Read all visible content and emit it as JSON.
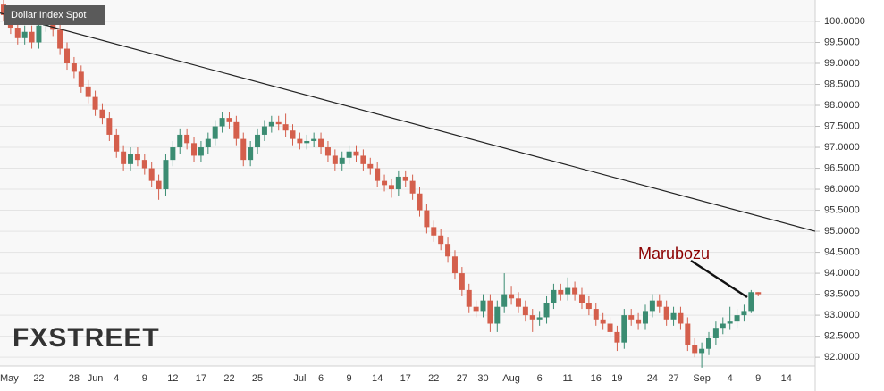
{
  "chart_data": {
    "type": "candlestick",
    "title": "Dollar Index Spot",
    "watermark": "FXSTREET",
    "annotation": "Marubozu",
    "up_color": "#3b8c72",
    "down_color": "#d45f4c",
    "categories": [
      null,
      "May",
      null,
      null,
      null,
      "22",
      null,
      null,
      null,
      null,
      "28",
      null,
      null,
      "Jun",
      null,
      null,
      "4",
      null,
      null,
      null,
      "9",
      null,
      null,
      null,
      "12",
      null,
      null,
      null,
      "17",
      null,
      null,
      null,
      "22",
      null,
      null,
      null,
      "25",
      null,
      null,
      null,
      null,
      null,
      "Jul",
      null,
      null,
      "6",
      null,
      null,
      null,
      "9",
      null,
      null,
      null,
      "14",
      null,
      null,
      null,
      "17",
      null,
      null,
      null,
      "22",
      null,
      null,
      null,
      "27",
      null,
      null,
      "30",
      null,
      null,
      null,
      "Aug",
      null,
      null,
      null,
      "6",
      null,
      null,
      null,
      "11",
      null,
      null,
      null,
      "16",
      null,
      null,
      "19",
      null,
      null,
      null,
      null,
      "24",
      null,
      null,
      "27",
      null,
      null,
      null,
      "Sep",
      null,
      null,
      null,
      "4",
      null,
      null,
      null,
      "9",
      null,
      null,
      null,
      "14"
    ],
    "candles": [
      [
        100.4,
        100.55,
        100.0,
        100.15
      ],
      [
        100.15,
        100.3,
        99.7,
        99.85
      ],
      [
        99.85,
        100.0,
        99.45,
        99.6
      ],
      [
        99.6,
        99.9,
        99.45,
        99.75
      ],
      [
        99.75,
        99.9,
        99.35,
        99.5
      ],
      [
        99.5,
        100.05,
        99.35,
        99.9
      ],
      [
        99.9,
        100.15,
        99.75,
        100.0
      ],
      [
        100.0,
        100.15,
        99.65,
        99.8
      ],
      [
        99.8,
        99.95,
        99.2,
        99.35
      ],
      [
        99.35,
        99.5,
        98.85,
        99.0
      ],
      [
        99.0,
        99.15,
        98.65,
        98.8
      ],
      [
        98.8,
        98.95,
        98.3,
        98.45
      ],
      [
        98.45,
        98.6,
        98.05,
        98.2
      ],
      [
        98.2,
        98.35,
        97.75,
        97.9
      ],
      [
        97.9,
        98.05,
        97.55,
        97.7
      ],
      [
        97.7,
        97.85,
        97.15,
        97.3
      ],
      [
        97.3,
        97.45,
        96.75,
        96.9
      ],
      [
        96.9,
        97.05,
        96.45,
        96.6
      ],
      [
        96.6,
        97.0,
        96.45,
        96.85
      ],
      [
        96.85,
        97.0,
        96.55,
        96.7
      ],
      [
        96.7,
        96.85,
        96.35,
        96.5
      ],
      [
        96.5,
        96.65,
        96.05,
        96.2
      ],
      [
        96.2,
        96.35,
        95.75,
        96.0
      ],
      [
        96.0,
        96.85,
        95.85,
        96.7
      ],
      [
        96.7,
        97.15,
        96.55,
        97.0
      ],
      [
        97.0,
        97.45,
        96.85,
        97.3
      ],
      [
        97.3,
        97.45,
        96.95,
        97.1
      ],
      [
        97.1,
        97.25,
        96.65,
        96.8
      ],
      [
        96.8,
        97.15,
        96.65,
        97.0
      ],
      [
        97.0,
        97.35,
        96.85,
        97.2
      ],
      [
        97.2,
        97.65,
        97.05,
        97.5
      ],
      [
        97.5,
        97.85,
        97.35,
        97.7
      ],
      [
        97.7,
        97.85,
        97.45,
        97.6
      ],
      [
        97.6,
        97.75,
        97.05,
        97.2
      ],
      [
        97.2,
        97.35,
        96.55,
        96.7
      ],
      [
        96.7,
        97.15,
        96.55,
        97.0
      ],
      [
        97.0,
        97.45,
        96.85,
        97.3
      ],
      [
        97.3,
        97.65,
        97.15,
        97.5
      ],
      [
        97.5,
        97.75,
        97.35,
        97.6
      ],
      [
        97.6,
        97.75,
        97.4,
        97.55
      ],
      [
        97.55,
        97.8,
        97.25,
        97.4
      ],
      [
        97.4,
        97.55,
        97.05,
        97.2
      ],
      [
        97.2,
        97.35,
        96.95,
        97.1
      ],
      [
        97.1,
        97.3,
        96.95,
        97.15
      ],
      [
        97.15,
        97.35,
        97.0,
        97.2
      ],
      [
        97.2,
        97.35,
        96.85,
        97.0
      ],
      [
        97.0,
        97.15,
        96.65,
        96.8
      ],
      [
        96.8,
        96.95,
        96.45,
        96.6
      ],
      [
        96.6,
        96.9,
        96.45,
        96.75
      ],
      [
        96.75,
        97.05,
        96.6,
        96.9
      ],
      [
        96.9,
        97.05,
        96.65,
        96.8
      ],
      [
        96.8,
        96.95,
        96.45,
        96.6
      ],
      [
        96.6,
        96.75,
        96.35,
        96.5
      ],
      [
        96.5,
        96.65,
        96.05,
        96.2
      ],
      [
        96.2,
        96.35,
        95.95,
        96.1
      ],
      [
        96.1,
        96.25,
        95.8,
        96.0
      ],
      [
        96.0,
        96.45,
        95.85,
        96.3
      ],
      [
        96.3,
        96.45,
        96.05,
        96.2
      ],
      [
        96.2,
        96.35,
        95.75,
        95.9
      ],
      [
        95.9,
        96.05,
        95.35,
        95.5
      ],
      [
        95.5,
        95.65,
        94.95,
        95.1
      ],
      [
        95.1,
        95.25,
        94.75,
        94.9
      ],
      [
        94.9,
        95.05,
        94.55,
        94.7
      ],
      [
        94.7,
        94.85,
        94.25,
        94.4
      ],
      [
        94.4,
        94.55,
        93.85,
        94.0
      ],
      [
        94.0,
        94.15,
        93.45,
        93.6
      ],
      [
        93.6,
        93.75,
        93.05,
        93.2
      ],
      [
        93.2,
        93.35,
        92.95,
        93.1
      ],
      [
        93.1,
        93.5,
        92.95,
        93.35
      ],
      [
        93.35,
        93.5,
        92.6,
        92.8
      ],
      [
        92.8,
        93.35,
        92.6,
        93.2
      ],
      [
        93.2,
        94.0,
        93.05,
        93.5
      ],
      [
        93.5,
        93.7,
        93.25,
        93.4
      ],
      [
        93.4,
        93.55,
        93.05,
        93.2
      ],
      [
        93.2,
        93.35,
        92.85,
        93.0
      ],
      [
        93.0,
        93.15,
        92.6,
        92.9
      ],
      [
        92.9,
        93.1,
        92.75,
        92.95
      ],
      [
        92.95,
        93.45,
        92.8,
        93.3
      ],
      [
        93.3,
        93.75,
        93.15,
        93.6
      ],
      [
        93.6,
        93.75,
        93.35,
        93.5
      ],
      [
        93.5,
        93.9,
        93.35,
        93.65
      ],
      [
        93.65,
        93.8,
        93.35,
        93.5
      ],
      [
        93.5,
        93.65,
        93.15,
        93.3
      ],
      [
        93.3,
        93.45,
        93.0,
        93.15
      ],
      [
        93.15,
        93.3,
        92.75,
        92.9
      ],
      [
        92.9,
        93.05,
        92.65,
        92.8
      ],
      [
        92.8,
        92.95,
        92.45,
        92.6
      ],
      [
        92.6,
        92.75,
        92.15,
        92.35
      ],
      [
        92.35,
        93.15,
        92.2,
        93.0
      ],
      [
        93.0,
        93.15,
        92.75,
        92.9
      ],
      [
        92.9,
        93.05,
        92.65,
        92.8
      ],
      [
        92.8,
        93.25,
        92.65,
        93.1
      ],
      [
        93.1,
        93.5,
        92.95,
        93.35
      ],
      [
        93.35,
        93.5,
        93.05,
        93.2
      ],
      [
        93.2,
        93.35,
        92.75,
        92.9
      ],
      [
        92.9,
        93.2,
        92.75,
        93.05
      ],
      [
        93.05,
        93.2,
        92.65,
        92.8
      ],
      [
        92.8,
        92.95,
        92.15,
        92.3
      ],
      [
        92.3,
        92.45,
        92.0,
        92.1
      ],
      [
        92.1,
        92.35,
        91.75,
        92.2
      ],
      [
        92.2,
        92.6,
        92.05,
        92.45
      ],
      [
        92.45,
        92.85,
        92.3,
        92.7
      ],
      [
        92.7,
        92.95,
        92.55,
        92.8
      ],
      [
        92.8,
        93.2,
        92.65,
        92.85
      ],
      [
        92.85,
        93.15,
        92.7,
        93.0
      ],
      [
        93.0,
        93.25,
        92.85,
        93.1
      ],
      [
        93.1,
        93.6,
        93.05,
        93.55
      ],
      [
        93.55,
        93.55,
        93.45,
        93.5
      ],
      null,
      null,
      null,
      null
    ],
    "trendline": {
      "values": [
        100.2,
        95.0
      ],
      "color": "#222222"
    },
    "ylim": [
      91.79,
      100.51
    ],
    "yticks": [
      {
        "value": 92,
        "label": "92.0000"
      },
      {
        "value": 92.5,
        "label": "92.5000"
      },
      {
        "value": 93,
        "label": "93.0000"
      },
      {
        "value": 93.5,
        "label": "93.5000"
      },
      {
        "value": 94,
        "label": "94.0000"
      },
      {
        "value": 94.5,
        "label": "94.5000"
      },
      {
        "value": 95,
        "label": "95.0000"
      },
      {
        "value": 95.5,
        "label": "95.5000"
      },
      {
        "value": 96,
        "label": "96.0000"
      },
      {
        "value": 96.5,
        "label": "96.5000"
      },
      {
        "value": 97,
        "label": "97.0000"
      },
      {
        "value": 97.5,
        "label": "97.5000"
      },
      {
        "value": 98,
        "label": "98.0000"
      },
      {
        "value": 98.5,
        "label": "98.5000"
      },
      {
        "value": 99,
        "label": "99.0000"
      },
      {
        "value": 99.5,
        "label": "99.5000"
      },
      {
        "value": 100,
        "label": "100.0000"
      }
    ],
    "grid": true
  }
}
